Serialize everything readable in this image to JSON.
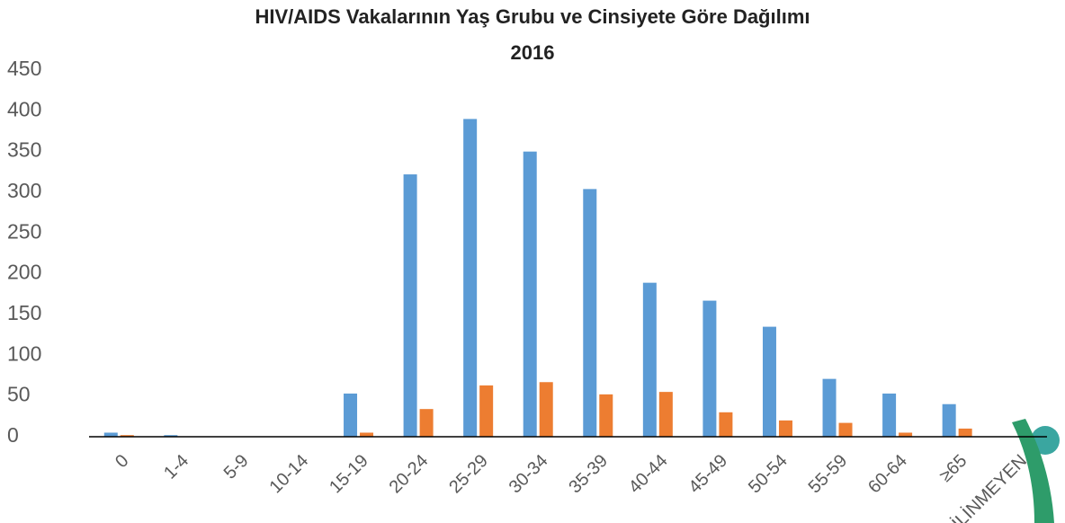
{
  "chart_data": {
    "type": "bar",
    "title": "HIV/AIDS Vakalarının Yaş Grubu ve Cinsiyete Göre Dağılımı",
    "subtitle": "2016",
    "categories": [
      "0",
      "1-4",
      "5-9",
      "10-14",
      "15-19",
      "20-24",
      "25-29",
      "30-34",
      "35-39",
      "40-44",
      "45-49",
      "50-54",
      "55-59",
      "60-64",
      "≥65",
      "BİLİNMEYEN"
    ],
    "series": [
      {
        "color": "#5b9bd5",
        "values": [
          5,
          2,
          0,
          0,
          53,
          322,
          390,
          350,
          304,
          189,
          167,
          135,
          71,
          53,
          40,
          0
        ]
      },
      {
        "color": "#ed7d31",
        "values": [
          2,
          0,
          0,
          0,
          5,
          34,
          63,
          67,
          52,
          55,
          30,
          20,
          17,
          5,
          10,
          0
        ]
      }
    ],
    "ylim": [
      0,
      450
    ],
    "yticks": [
      0,
      50,
      100,
      150,
      200,
      250,
      300,
      350,
      400,
      450
    ],
    "grid": false
  }
}
